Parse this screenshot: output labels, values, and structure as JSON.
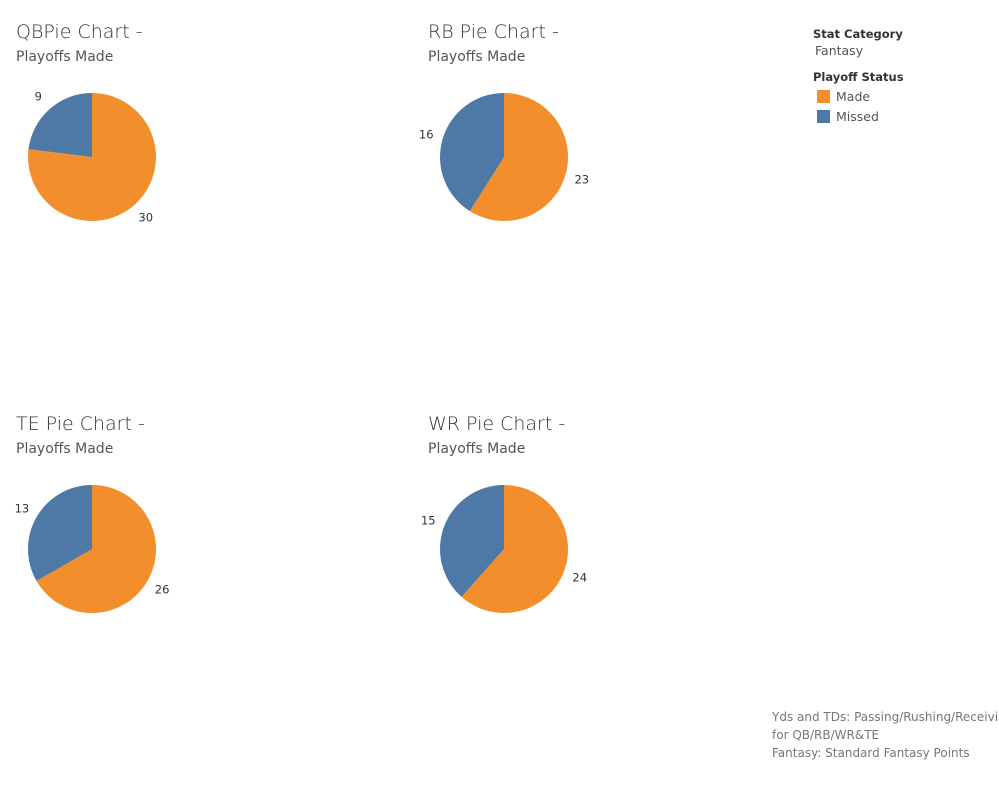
{
  "colors": {
    "made": "#F28E2B",
    "missed": "#4E79A7"
  },
  "legend": {
    "stat_category_label": "Stat Category",
    "stat_category_value": "Fantasy",
    "playoff_status_label": "Playoff Status",
    "items": [
      {
        "label": "Made",
        "color": "#F28E2B"
      },
      {
        "label": "Missed",
        "color": "#4E79A7"
      }
    ]
  },
  "footnote": {
    "line1": "Yds and TDs: Passing/Rushing/Receiving",
    "line2": "for QB/RB/WR&TE",
    "line3": "Fantasy: Standard Fantasy Points"
  },
  "chart_data": [
    {
      "type": "pie",
      "title": "QBPie Chart -",
      "subtitle": "Playoffs Made",
      "slices": [
        {
          "name": "Made",
          "value": 30
        },
        {
          "name": "Missed",
          "value": 9
        }
      ]
    },
    {
      "type": "pie",
      "title": "RB Pie Chart -",
      "subtitle": "Playoffs Made",
      "slices": [
        {
          "name": "Made",
          "value": 23
        },
        {
          "name": "Missed",
          "value": 16
        }
      ]
    },
    {
      "type": "pie",
      "title": "TE Pie Chart -",
      "subtitle": "Playoffs Made",
      "slices": [
        {
          "name": "Made",
          "value": 26
        },
        {
          "name": "Missed",
          "value": 13
        }
      ]
    },
    {
      "type": "pie",
      "title": "WR Pie Chart -",
      "subtitle": "Playoffs Made",
      "slices": [
        {
          "name": "Made",
          "value": 24
        },
        {
          "name": "Missed",
          "value": 15
        }
      ]
    }
  ]
}
